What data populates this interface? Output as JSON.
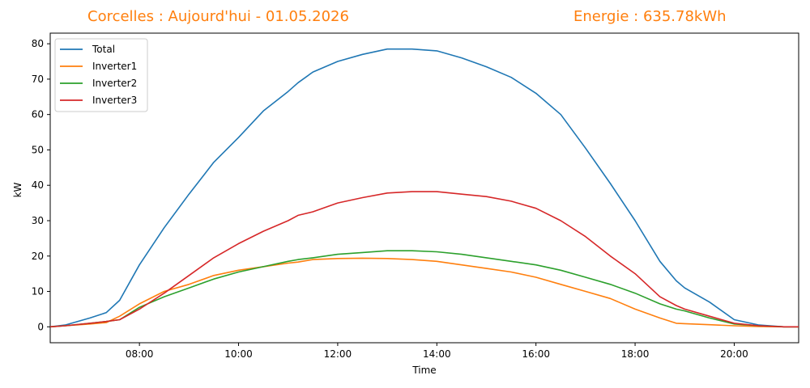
{
  "header": {
    "left_title": "Corcelles : Aujourd'hui - 01.05.2026",
    "right_title": "Energie : 635.78kWh"
  },
  "chart_data": {
    "type": "line",
    "xlabel": "Time",
    "ylabel": "kW",
    "xlim": [
      6.2,
      21.3
    ],
    "ylim": [
      -4.5,
      83
    ],
    "x_ticks": [
      {
        "value": 8,
        "label": "08:00"
      },
      {
        "value": 10,
        "label": "10:00"
      },
      {
        "value": 12,
        "label": "12:00"
      },
      {
        "value": 14,
        "label": "14:00"
      },
      {
        "value": 16,
        "label": "16:00"
      },
      {
        "value": 18,
        "label": "18:00"
      },
      {
        "value": 20,
        "label": "20:00"
      }
    ],
    "y_ticks": [
      0,
      10,
      20,
      30,
      40,
      50,
      60,
      70,
      80
    ],
    "grid": false,
    "legend_position": "top-left",
    "x": [
      6.2,
      6.5,
      7.0,
      7.33,
      7.6,
      8.0,
      8.5,
      9.0,
      9.5,
      10.0,
      10.5,
      11.0,
      11.2,
      11.5,
      12.0,
      12.5,
      13.0,
      13.5,
      14.0,
      14.5,
      15.0,
      15.5,
      16.0,
      16.5,
      17.0,
      17.5,
      18.0,
      18.5,
      18.83,
      19.0,
      19.5,
      20.0,
      20.5,
      21.0,
      21.3
    ],
    "series": [
      {
        "name": "Total",
        "color": "#1f77b4",
        "values": [
          0,
          0.5,
          2.5,
          4,
          7.5,
          17.5,
          28,
          37.5,
          46.5,
          53.5,
          61,
          66.5,
          69,
          72,
          75,
          77,
          78.5,
          78.5,
          78,
          76,
          73.5,
          70.5,
          66,
          60,
          50.5,
          40.5,
          30,
          18.5,
          13,
          11,
          7,
          2,
          0.5,
          0,
          0
        ]
      },
      {
        "name": "Inverter1",
        "color": "#ff7f0e",
        "values": [
          0,
          0.3,
          0.8,
          1.2,
          3,
          6.5,
          10,
          12,
          14.5,
          16,
          17,
          18,
          18.3,
          19,
          19.3,
          19.4,
          19.3,
          19,
          18.5,
          17.5,
          16.5,
          15.5,
          14,
          12,
          10,
          8,
          5,
          2.5,
          1,
          0.9,
          0.6,
          0.3,
          0.1,
          0,
          0
        ]
      },
      {
        "name": "Inverter2",
        "color": "#2ca02c",
        "values": [
          0,
          0.3,
          1,
          1.5,
          2,
          5.5,
          8.5,
          11,
          13.5,
          15.5,
          17,
          18.5,
          19,
          19.5,
          20.5,
          21,
          21.5,
          21.5,
          21.2,
          20.5,
          19.5,
          18.5,
          17.5,
          16,
          14,
          12,
          9.5,
          6.5,
          5,
          4.5,
          2.5,
          0.8,
          0.3,
          0,
          0
        ]
      },
      {
        "name": "Inverter3",
        "color": "#d62728",
        "values": [
          0,
          0.3,
          1,
          1.5,
          2,
          5,
          9.5,
          14.5,
          19.5,
          23.5,
          27,
          30,
          31.5,
          32.5,
          35,
          36.5,
          37.8,
          38.2,
          38.2,
          37.5,
          36.8,
          35.5,
          33.5,
          30,
          25.5,
          20,
          15,
          8.5,
          6,
          5,
          3,
          1,
          0.3,
          0,
          0
        ]
      }
    ]
  }
}
